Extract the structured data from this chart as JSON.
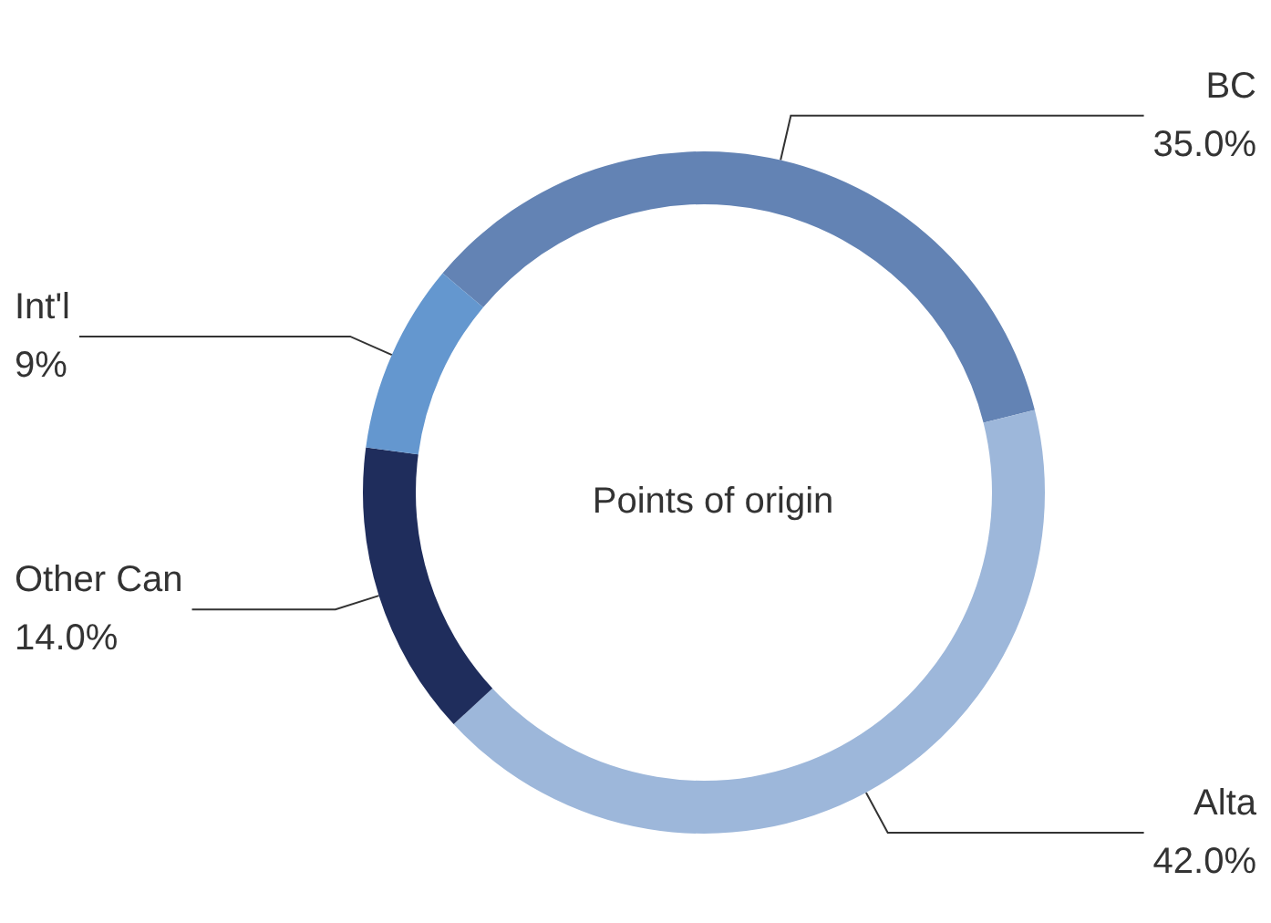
{
  "chart_data": {
    "type": "donut",
    "title": "Points of origin",
    "categories": [
      "BC",
      "Alta",
      "Other Can",
      "Int'l"
    ],
    "values": [
      35.0,
      42.0,
      14.0,
      9
    ],
    "value_labels": [
      "35.0%",
      "42.0%",
      "14.0%",
      "9%"
    ],
    "colors": [
      "#6383b4",
      "#9db7da",
      "#1f2d5c",
      "#6497cf"
    ]
  }
}
